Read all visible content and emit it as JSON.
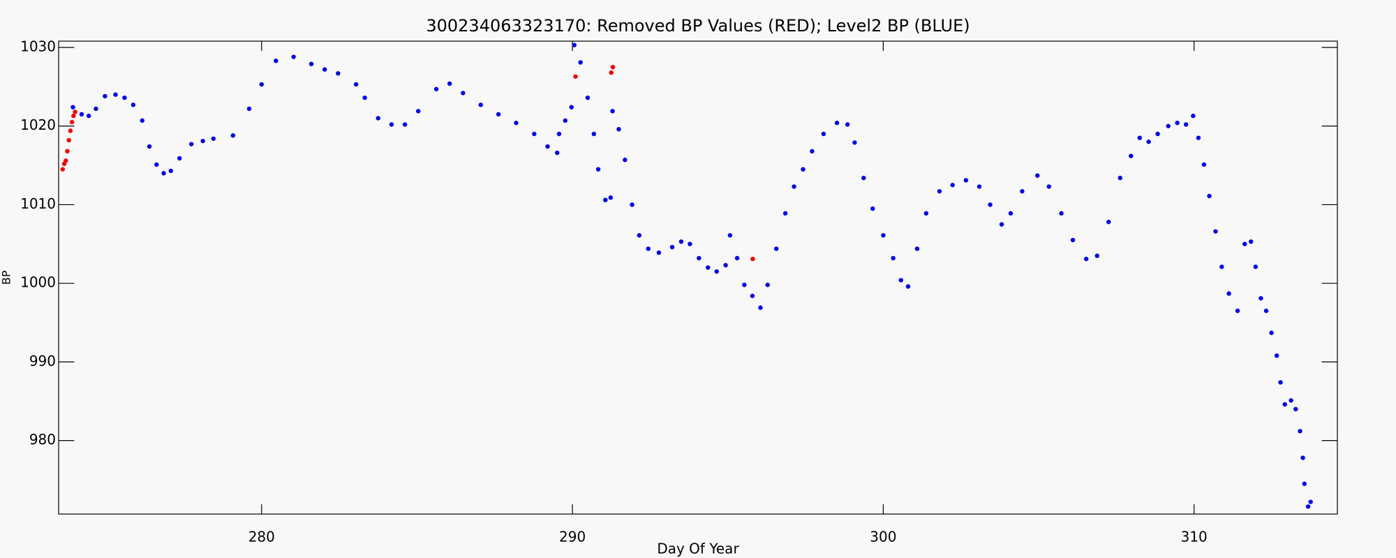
{
  "chart_data": {
    "type": "scatter",
    "title": "300234063323170: Removed BP Values (RED); Level2 BP (BLUE)",
    "x_label": "Day Of Year",
    "y_label": "BP",
    "xlim": [
      273.47,
      314.61
    ],
    "ylim": [
      970.65,
      1030.8
    ],
    "xticks": [
      280,
      290,
      300,
      310
    ],
    "yticks": [
      980,
      990,
      1000,
      1010,
      1020,
      1030
    ],
    "series": [
      {
        "color": "#0000ff",
        "x": [
          273.93,
          274.21,
          274.44,
          274.67,
          274.96,
          275.3,
          275.59,
          275.87,
          276.16,
          276.39,
          276.62,
          276.85,
          277.08,
          277.36,
          277.74,
          278.11,
          278.45,
          279.08,
          279.6,
          280,
          280.46,
          281.03,
          281.6,
          282.03,
          282.46,
          283.04,
          283.32,
          283.75,
          284.18,
          284.61,
          285.04,
          285.62,
          286.05,
          286.48,
          287.05,
          287.62,
          288.19,
          288.77,
          289.2,
          289.51,
          289.57,
          289.77,
          289.97,
          290.06,
          290.26,
          290.49,
          290.69,
          290.83,
          291.06,
          291.23,
          291.29,
          291.49,
          291.69,
          291.92,
          292.15,
          292.44,
          292.78,
          293.21,
          293.5,
          293.78,
          294.07,
          294.36,
          294.64,
          294.93,
          295.07,
          295.3,
          295.53,
          295.79,
          296.05,
          296.28,
          296.56,
          296.85,
          297.13,
          297.42,
          297.71,
          298.08,
          298.51,
          298.85,
          299.08,
          299.37,
          299.66,
          300,
          300.32,
          300.57,
          300.8,
          301.09,
          301.38,
          301.81,
          302.23,
          302.66,
          303.09,
          303.44,
          303.81,
          304.1,
          304.47,
          304.96,
          305.33,
          305.73,
          306.1,
          306.53,
          306.88,
          307.25,
          307.62,
          307.97,
          308.25,
          308.54,
          308.83,
          309.17,
          309.46,
          309.74,
          309.97,
          310.14,
          310.32,
          310.49,
          310.69,
          310.89,
          311.12,
          311.4,
          311.63,
          311.83,
          311.98,
          312.15,
          312.32,
          312.49,
          312.66,
          312.78,
          312.92,
          313.12,
          313.27,
          313.41,
          313.5,
          313.55,
          313.67,
          313.75
        ],
        "values": [
          1022.4,
          1021.5,
          1021.3,
          1022.2,
          1023.8,
          1024,
          1023.6,
          1022.7,
          1020.7,
          1017.4,
          1015.1,
          1014,
          1014.3,
          1015.9,
          1017.7,
          1018.1,
          1018.4,
          1018.8,
          1022.2,
          1025.3,
          1028.3,
          1028.8,
          1027.9,
          1027.2,
          1026.7,
          1025.3,
          1023.6,
          1021,
          1020.2,
          1020.2,
          1021.9,
          1024.7,
          1025.4,
          1024.2,
          1022.7,
          1021.5,
          1020.4,
          1019,
          1017.4,
          1016.6,
          1019,
          1020.7,
          1022.4,
          1030.3,
          1028.1,
          1023.6,
          1019,
          1014.5,
          1010.6,
          1010.9,
          1021.9,
          1019.6,
          1015.7,
          1010,
          1006.1,
          1004.4,
          1003.9,
          1004.6,
          1005.3,
          1005,
          1003.2,
          1002,
          1001.5,
          1002.3,
          1006.1,
          1003.2,
          999.8,
          998.4,
          996.9,
          999.8,
          1004.4,
          1008.9,
          1012.3,
          1014.5,
          1016.8,
          1019,
          1020.4,
          1020.2,
          1017.9,
          1013.4,
          1009.5,
          1006.1,
          1003.2,
          1000.4,
          999.6,
          1004.4,
          1008.9,
          1011.7,
          1012.5,
          1013.1,
          1012.3,
          1010,
          1007.5,
          1008.9,
          1011.7,
          1013.7,
          1012.3,
          1008.9,
          1005.5,
          1003.1,
          1003.5,
          1007.8,
          1013.4,
          1016.2,
          1018.5,
          1018,
          1019,
          1020,
          1020.4,
          1020.2,
          1021.3,
          1018.5,
          1015.1,
          1011.1,
          1006.6,
          1002.1,
          998.7,
          996.5,
          1005,
          1005.3,
          1002.1,
          998.1,
          996.5,
          993.7,
          990.8,
          987.4,
          984.6,
          985.1,
          984,
          981.2,
          977.8,
          974.5,
          971.6,
          972.2
        ]
      },
      {
        "color": "#ff0000",
        "x": [
          273.6,
          273.65,
          273.7,
          273.75,
          273.8,
          273.85,
          273.9,
          273.95,
          274.0,
          290.1,
          291.25,
          291.3,
          295.8
        ],
        "values": [
          1014.5,
          1015.2,
          1015.6,
          1016.8,
          1018.2,
          1019.4,
          1020.5,
          1021.3,
          1021.8,
          1026.3,
          1026.8,
          1027.5,
          1003.1
        ]
      }
    ]
  }
}
